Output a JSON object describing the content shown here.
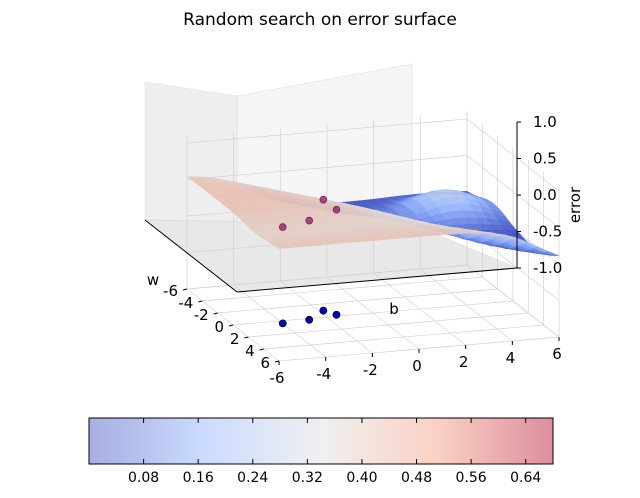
{
  "chart_data": {
    "type": "surface3d",
    "title": "Random search on error surface",
    "x_axis": {
      "label": "w",
      "ticks": [
        "-6",
        "-4",
        "-2",
        "0",
        "2",
        "4",
        "6"
      ],
      "range": [
        -6,
        6
      ]
    },
    "y_axis": {
      "label": "b",
      "ticks": [
        "-6",
        "-4",
        "-2",
        "0",
        "2",
        "4",
        "6"
      ],
      "range": [
        -6,
        6
      ]
    },
    "z_axis": {
      "label": "error",
      "ticks": [
        "-1.0",
        "-0.5",
        "0.0",
        "0.5",
        "1.0"
      ],
      "range": [
        -1,
        1.1
      ]
    },
    "colormap": "coolwarm",
    "colorbar": {
      "ticks": [
        "0.08",
        "0.16",
        "0.24",
        "0.32",
        "0.40",
        "0.48",
        "0.56",
        "0.64"
      ],
      "range": [
        0.0,
        0.68
      ]
    },
    "search_points": [
      {
        "w": -1.0,
        "b": -1.8,
        "error": 0.52
      },
      {
        "w": -0.2,
        "b": -1.5,
        "error": 0.44
      },
      {
        "w": 0.2,
        "b": -2.8,
        "error": 0.36
      },
      {
        "w": 0.4,
        "b": -4.0,
        "error": 0.32
      }
    ]
  }
}
